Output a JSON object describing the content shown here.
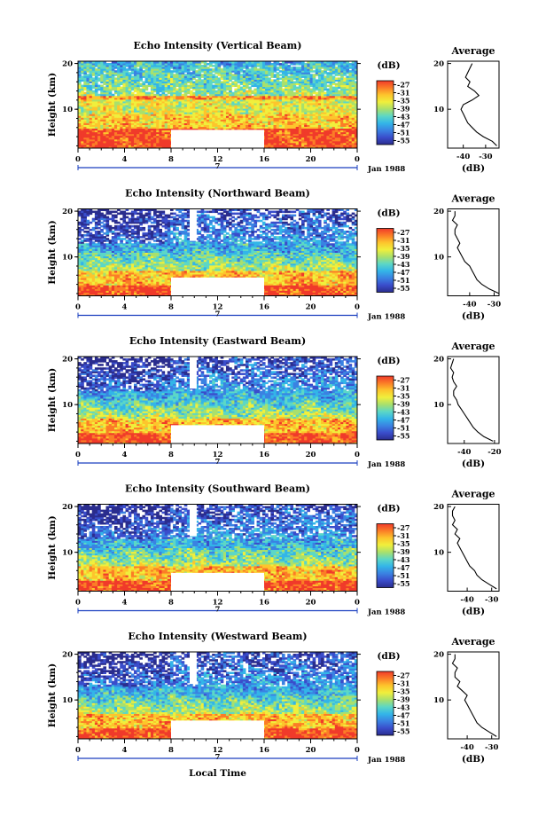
{
  "figure": {
    "xlabel": "Local Time",
    "date_label": "Jan 1988",
    "day_label": "7",
    "colorbar_unit": "(dB)",
    "profile_title": "Average",
    "profile_xlabel": "(dB)",
    "ylabel": "Height (km)"
  },
  "chart_data": [
    {
      "type": "heatmap",
      "title": "Echo Intensity (Vertical Beam)",
      "ylabel": "Height (km)",
      "x_range": [
        0,
        24
      ],
      "x_ticks": [
        "0",
        "4",
        "8",
        "12",
        "16",
        "20",
        "0"
      ],
      "y_range": [
        1.5,
        20.5
      ],
      "y_ticks": [
        "10",
        "20"
      ],
      "colorbar_ticks": [
        "-27",
        "-31",
        "-35",
        "-39",
        "-43",
        "-47",
        "-51",
        "-55"
      ],
      "data_gap_hours": [
        8,
        16
      ],
      "profile_x_ticks": [
        "-40",
        "-30"
      ],
      "profile_x_range": [
        -47,
        -24
      ],
      "profile": {
        "height_km": [
          2,
          3,
          4,
          5,
          6,
          7,
          8,
          9,
          10,
          11,
          12,
          13,
          14,
          15,
          16,
          17,
          18,
          19,
          20
        ],
        "db": [
          -25,
          -27,
          -31,
          -34,
          -36,
          -38,
          -39,
          -40,
          -41,
          -40,
          -36,
          -33,
          -35,
          -38,
          -37,
          -39,
          -38,
          -37,
          -36
        ]
      }
    },
    {
      "type": "heatmap",
      "title": "Echo Intensity (Northward Beam)",
      "ylabel": "Height (km)",
      "x_range": [
        0,
        24
      ],
      "x_ticks": [
        "0",
        "4",
        "8",
        "12",
        "16",
        "20",
        "0"
      ],
      "y_range": [
        1.5,
        20.5
      ],
      "y_ticks": [
        "10",
        "20"
      ],
      "colorbar_ticks": [
        "-27",
        "-31",
        "-35",
        "-39",
        "-43",
        "-47",
        "-51",
        "-55"
      ],
      "data_gap_hours": [
        8,
        16
      ],
      "profile_x_ticks": [
        "-40",
        "-30"
      ],
      "profile_x_range": [
        -49,
        -28
      ],
      "profile": {
        "height_km": [
          2,
          3,
          4,
          5,
          6,
          7,
          8,
          9,
          10,
          11,
          12,
          13,
          14,
          15,
          16,
          17,
          18,
          19,
          20
        ],
        "db": [
          -28,
          -32,
          -35,
          -37,
          -38,
          -39,
          -40,
          -42,
          -43,
          -44,
          -45,
          -44,
          -45,
          -46,
          -46,
          -45,
          -47,
          -46,
          -46
        ]
      }
    },
    {
      "type": "heatmap",
      "title": "Echo Intensity (Eastward Beam)",
      "ylabel": "Height (km)",
      "x_range": [
        0,
        24
      ],
      "x_ticks": [
        "0",
        "4",
        "8",
        "12",
        "16",
        "20",
        "0"
      ],
      "y_range": [
        1.5,
        20.5
      ],
      "y_ticks": [
        "10",
        "20"
      ],
      "colorbar_ticks": [
        "-27",
        "-31",
        "-35",
        "-39",
        "-43",
        "-47",
        "-51",
        "-55"
      ],
      "data_gap_hours": [
        8,
        16
      ],
      "profile_x_ticks": [
        "-40",
        "-20"
      ],
      "profile_x_range": [
        -51,
        -17
      ],
      "profile": {
        "height_km": [
          2,
          3,
          4,
          5,
          6,
          7,
          8,
          9,
          10,
          11,
          12,
          13,
          14,
          15,
          16,
          17,
          18,
          19,
          20
        ],
        "db": [
          -21,
          -27,
          -31,
          -34,
          -36,
          -38,
          -40,
          -42,
          -44,
          -45,
          -47,
          -47,
          -45,
          -47,
          -48,
          -47,
          -49,
          -48,
          -47
        ]
      }
    },
    {
      "type": "heatmap",
      "title": "Echo Intensity (Southward Beam)",
      "ylabel": "Height (km)",
      "x_range": [
        0,
        24
      ],
      "x_ticks": [
        "0",
        "4",
        "8",
        "12",
        "16",
        "20",
        "0"
      ],
      "y_range": [
        1.5,
        20.5
      ],
      "y_ticks": [
        "10",
        "20"
      ],
      "colorbar_ticks": [
        "-27",
        "-31",
        "-35",
        "-39",
        "-43",
        "-47",
        "-51",
        "-55"
      ],
      "data_gap_hours": [
        8,
        16
      ],
      "profile_x_ticks": [
        "-40",
        "-30"
      ],
      "profile_x_range": [
        -48,
        -27
      ],
      "profile": {
        "height_km": [
          2,
          3,
          4,
          5,
          6,
          7,
          8,
          9,
          10,
          11,
          12,
          13,
          14,
          15,
          16,
          17,
          18,
          19,
          20
        ],
        "db": [
          -28,
          -31,
          -34,
          -36,
          -37,
          -39,
          -40,
          -41,
          -42,
          -43,
          -44,
          -43,
          -45,
          -44,
          -46,
          -45,
          -46,
          -46,
          -45
        ]
      }
    },
    {
      "type": "heatmap",
      "title": "Echo Intensity (Westward Beam)",
      "ylabel": "Height (km)",
      "x_range": [
        0,
        24
      ],
      "x_ticks": [
        "0",
        "4",
        "8",
        "12",
        "16",
        "20",
        "0"
      ],
      "y_range": [
        1.5,
        20.5
      ],
      "y_ticks": [
        "10",
        "20"
      ],
      "colorbar_ticks": [
        "-27",
        "-31",
        "-35",
        "-39",
        "-43",
        "-47",
        "-51",
        "-55"
      ],
      "data_gap_hours": [
        8,
        16
      ],
      "profile_x_ticks": [
        "-40",
        "-30"
      ],
      "profile_x_range": [
        -48,
        -27
      ],
      "profile": {
        "height_km": [
          2,
          3,
          4,
          5,
          6,
          7,
          8,
          9,
          10,
          11,
          12,
          13,
          14,
          15,
          16,
          17,
          18,
          19,
          20
        ],
        "db": [
          -28,
          -31,
          -34,
          -36,
          -37,
          -38,
          -39,
          -40,
          -41,
          -40,
          -42,
          -44,
          -43,
          -45,
          -45,
          -44,
          -46,
          -45,
          -45
        ]
      }
    }
  ],
  "colors": {
    "colorbar_stops": [
      "#f03a2a",
      "#fb7d27",
      "#fdc52c",
      "#f0ef3c",
      "#a9e06c",
      "#5cd7c6",
      "#33b5e8",
      "#3a82e2",
      "#3a4dcb",
      "#2a2d8e"
    ],
    "axis": "#000000",
    "day_marker": "#1a3fbf",
    "gap_fill": "#ffffff"
  }
}
